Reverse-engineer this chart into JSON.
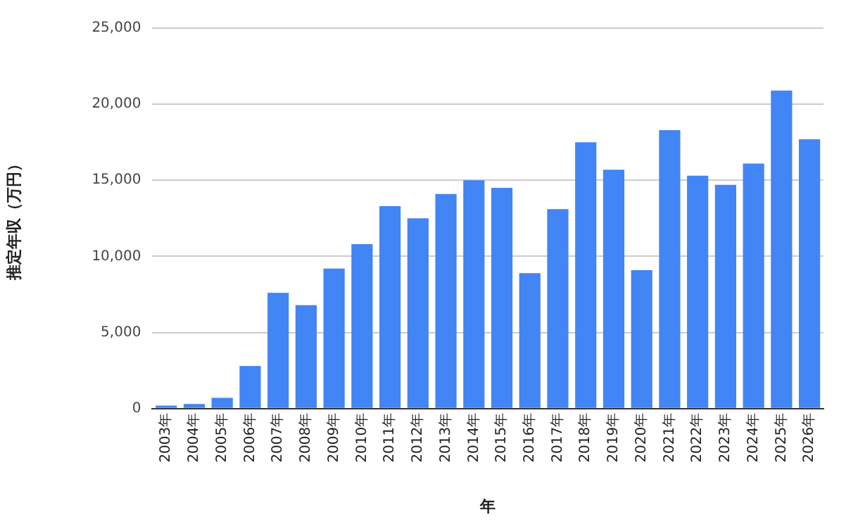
{
  "chart_data": {
    "type": "bar",
    "xlabel": "年",
    "ylabel": "推定年収（万円）",
    "categories": [
      "2003年",
      "2004年",
      "2005年",
      "2006年",
      "2007年",
      "2008年",
      "2009年",
      "2010年",
      "2011年",
      "2012年",
      "2013年",
      "2014年",
      "2015年",
      "2016年",
      "2017年",
      "2018年",
      "2019年",
      "2020年",
      "2021年",
      "2022年",
      "2023年",
      "2024年",
      "2025年",
      "2026年"
    ],
    "values": [
      200,
      300,
      700,
      2800,
      7600,
      6800,
      9200,
      10800,
      13300,
      12500,
      14100,
      15000,
      14500,
      8900,
      13100,
      17500,
      15700,
      9100,
      18300,
      15300,
      14700,
      16100,
      20900,
      17700
    ],
    "color": "#4285f4",
    "ylim": [
      0,
      25000
    ],
    "yticks": [
      0,
      {
        "value": 5000,
        "label": "5,000"
      },
      {
        "value": 10000,
        "label": "10,000"
      },
      {
        "value": 15000,
        "label": "15,000"
      },
      {
        "value": 20000,
        "label": "20,000"
      },
      {
        "value": 25000,
        "label": "25,000"
      }
    ],
    "grid": "y",
    "legend": false
  }
}
